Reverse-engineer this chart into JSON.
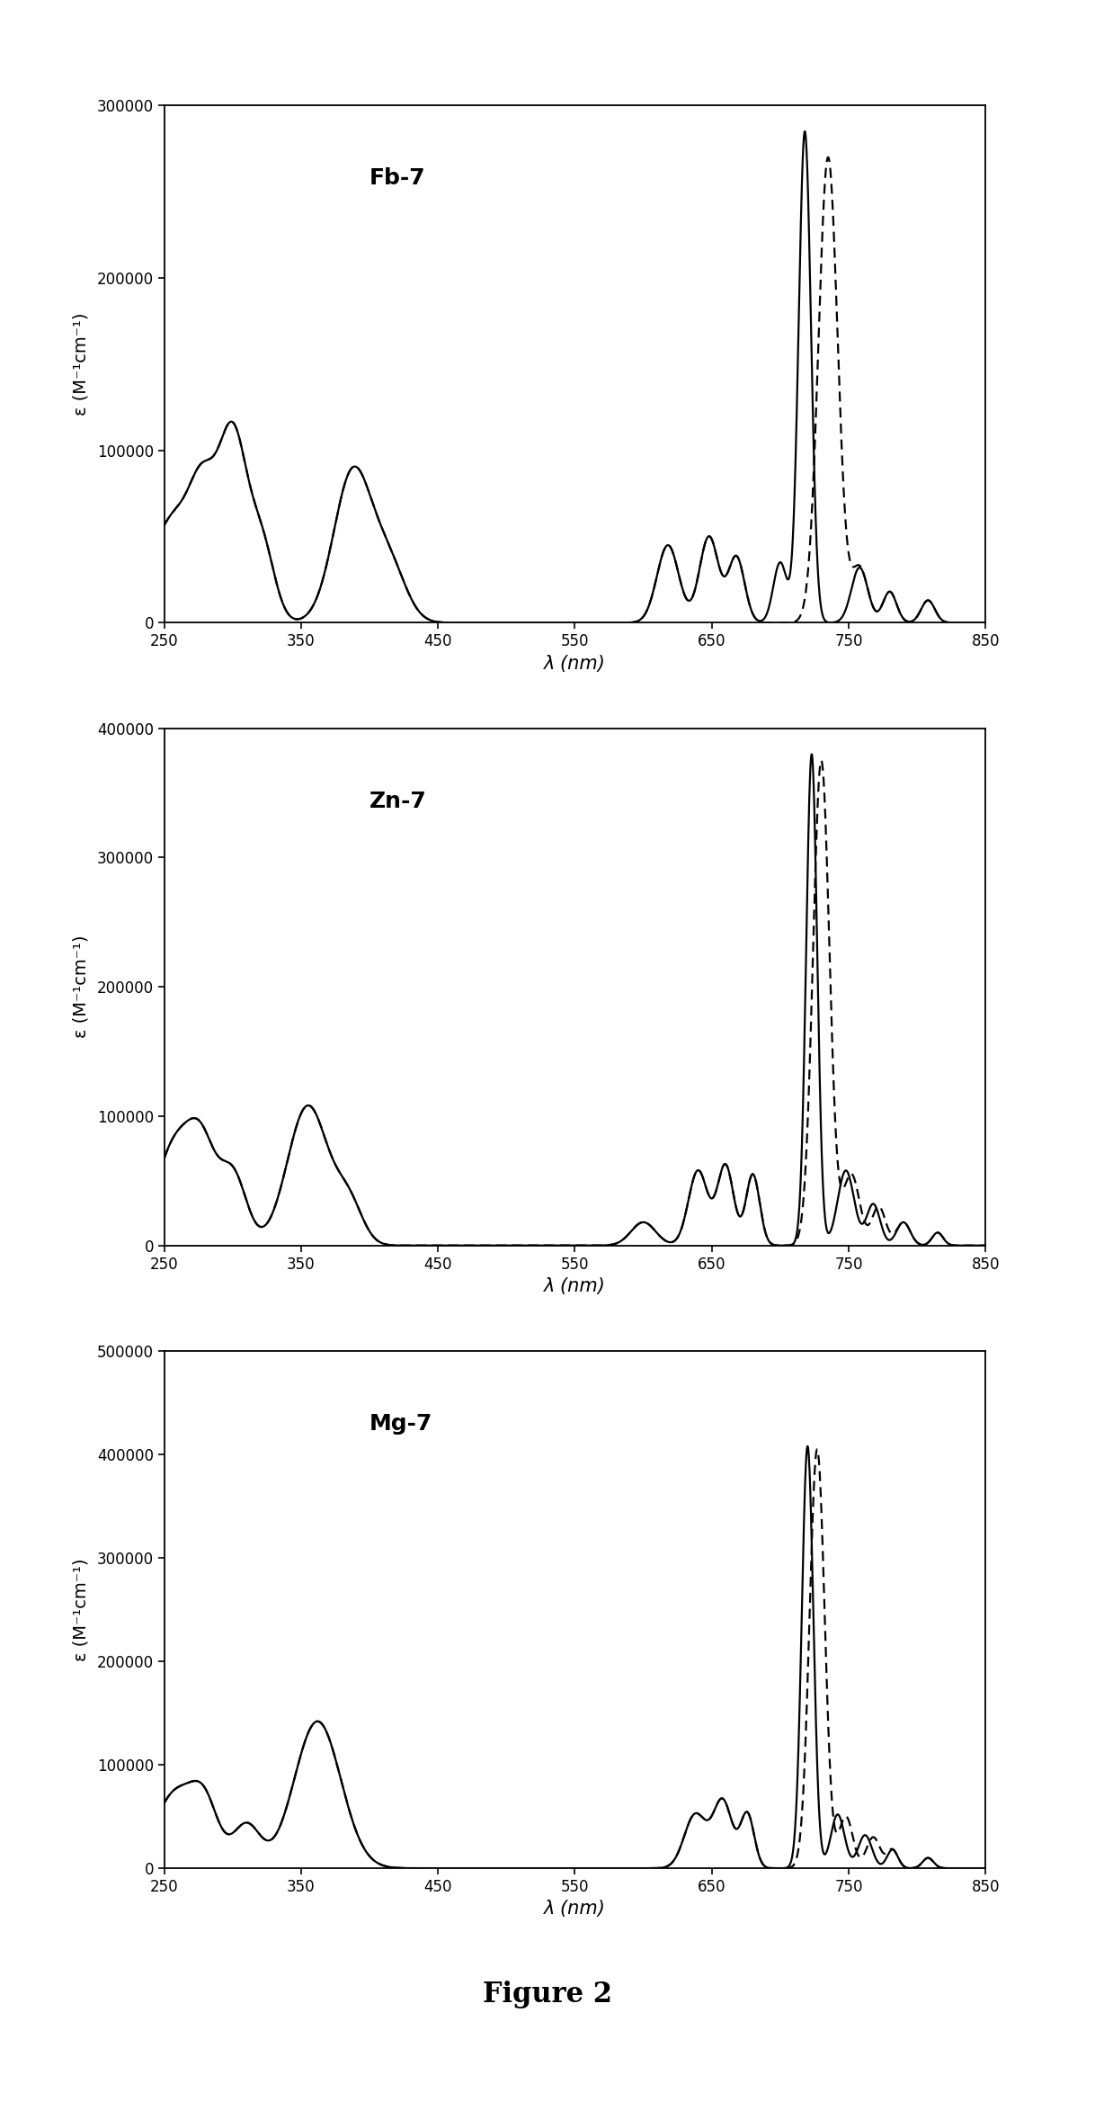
{
  "figure_caption": "Figure 2",
  "panels": [
    {
      "label": "Fb-7",
      "ylabel": "ε (M⁻¹cm⁻¹)",
      "xlabel": "λ (nm)",
      "xlim": [
        250,
        850
      ],
      "ylim": [
        0,
        300000
      ],
      "yticks": [
        0,
        100000,
        200000,
        300000
      ],
      "xticks": [
        250,
        350,
        450,
        550,
        650,
        750,
        850
      ]
    },
    {
      "label": "Zn-7",
      "ylabel": "ε (M⁻¹cm⁻¹)",
      "xlabel": "λ (nm)",
      "xlim": [
        250,
        850
      ],
      "ylim": [
        0,
        400000
      ],
      "yticks": [
        0,
        100000,
        200000,
        300000,
        400000
      ],
      "xticks": [
        250,
        350,
        450,
        550,
        650,
        750,
        850
      ]
    },
    {
      "label": "Mg-7",
      "ylabel": "ε (M⁻¹cm⁻¹)",
      "xlabel": "λ (nm)",
      "xlim": [
        250,
        850
      ],
      "ylim": [
        0,
        500000
      ],
      "yticks": [
        0,
        100000,
        200000,
        300000,
        400000,
        500000
      ],
      "xticks": [
        250,
        350,
        450,
        550,
        650,
        750,
        850
      ]
    }
  ],
  "line_color": "#000000",
  "line_width": 1.6,
  "background_color": "#ffffff",
  "label_fontsize": 15,
  "tick_fontsize": 12,
  "caption_fontsize": 22
}
